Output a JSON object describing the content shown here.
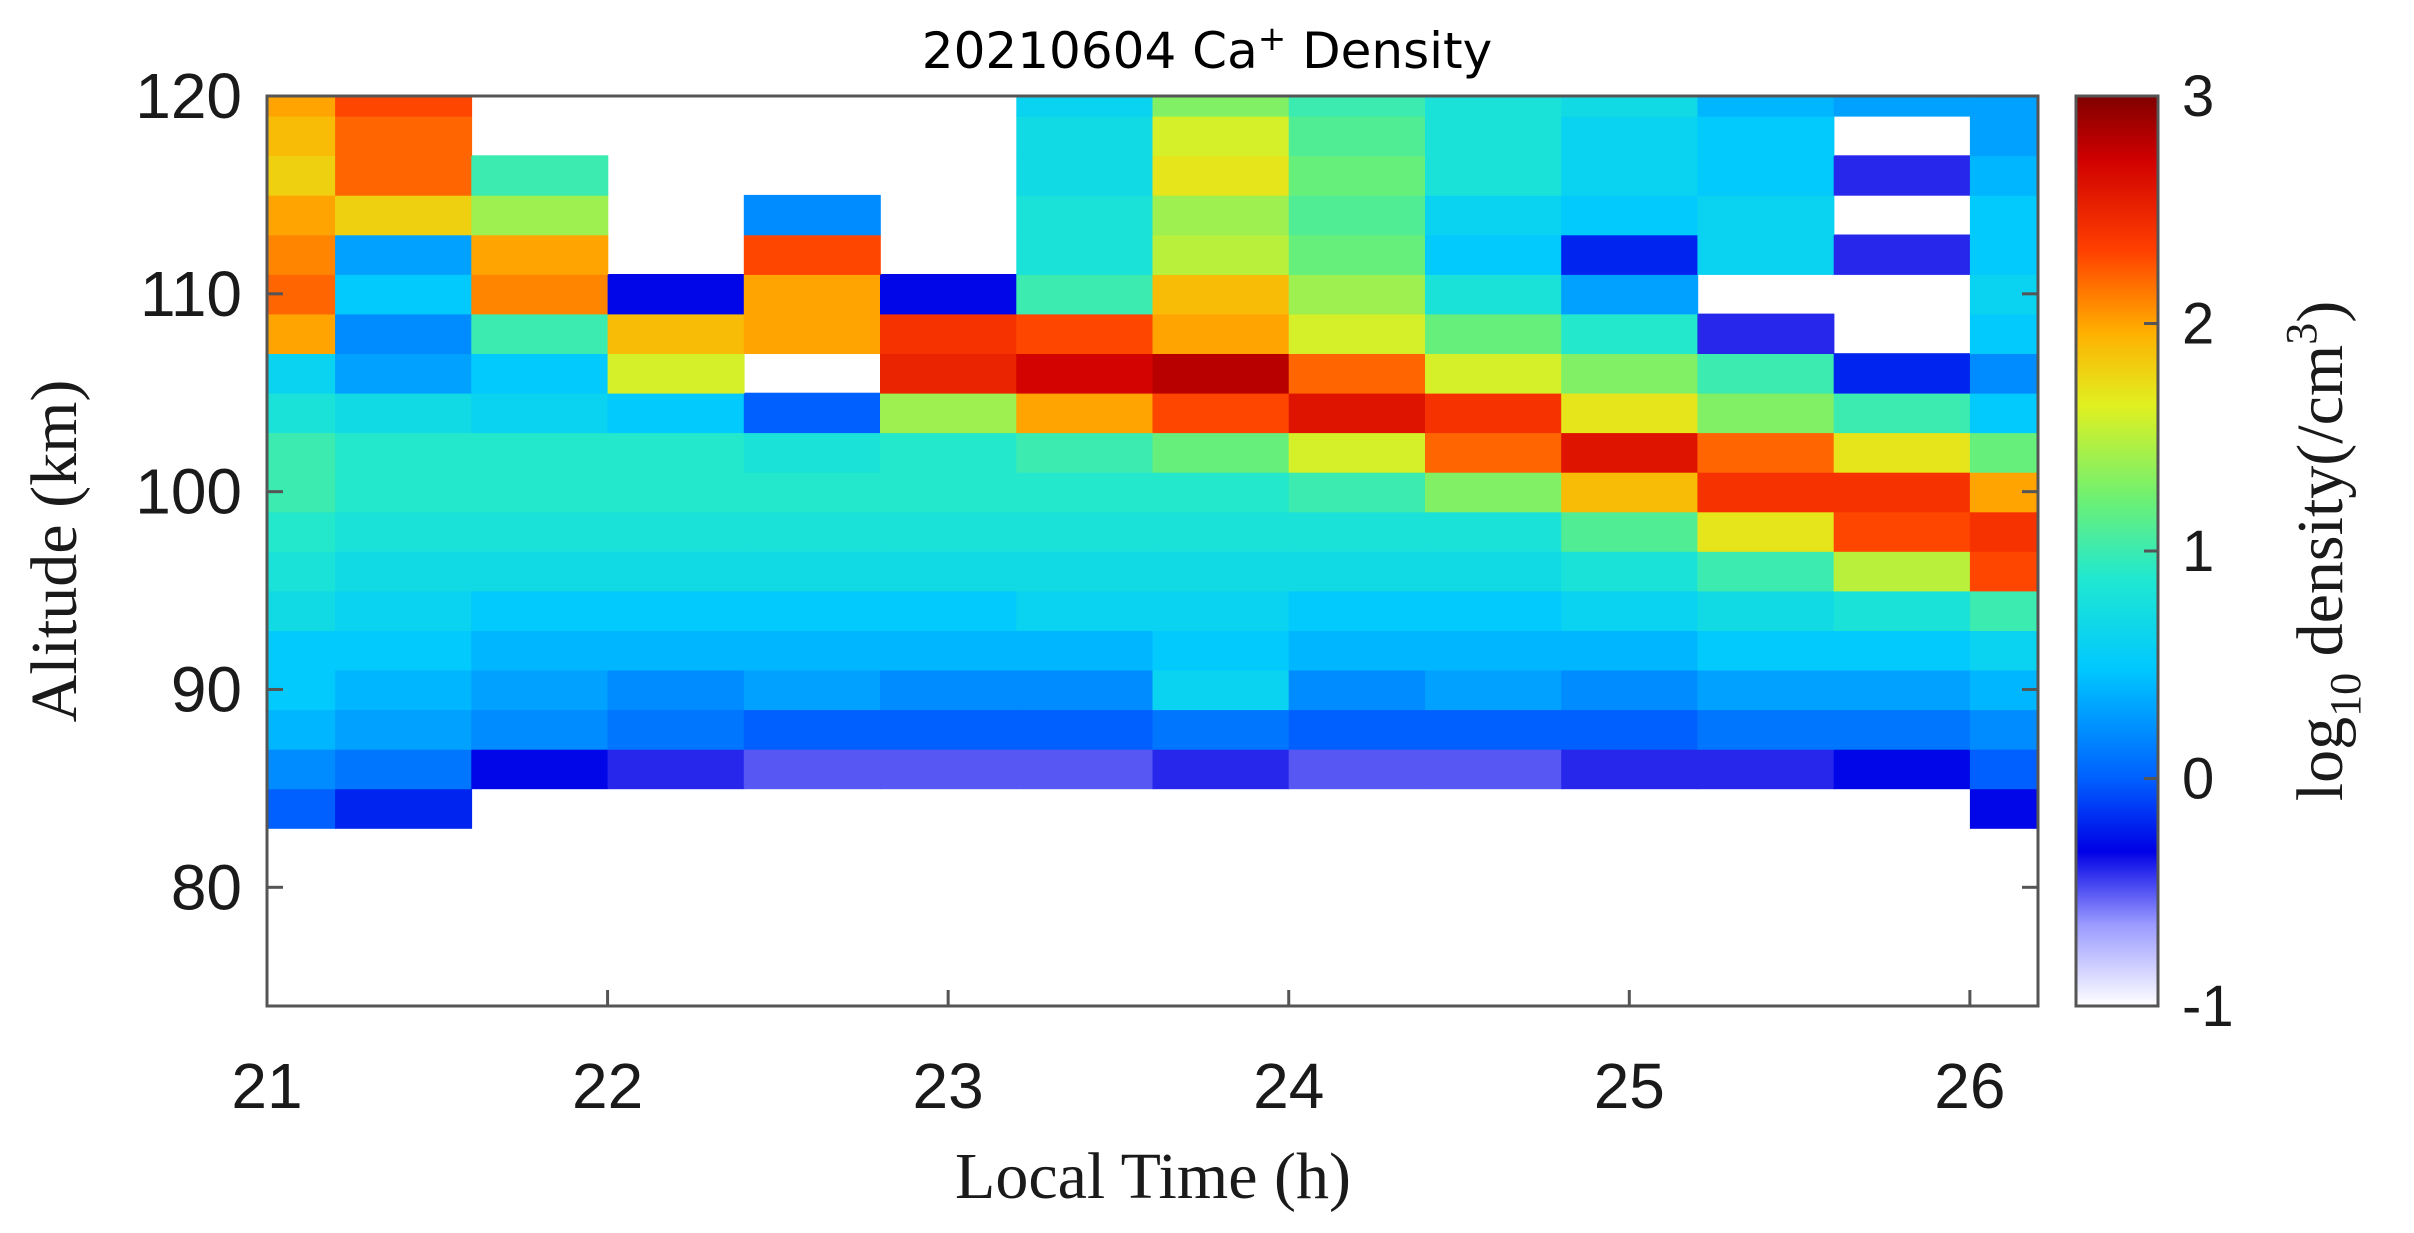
{
  "chart_data": {
    "type": "heatmap",
    "title": "20210604 Ca",
    "title_superscript": "+",
    "title_suffix": " Density",
    "xlabel": "Local Time (h)",
    "ylabel": "Alitude (km)",
    "colorbar_label_prefix": "log",
    "colorbar_label_subscript": "10",
    "colorbar_label_middle": " density(/cm",
    "colorbar_label_superscript": "3",
    "colorbar_label_suffix": ")",
    "xlim": [
      21,
      26.2
    ],
    "ylim": [
      74,
      120
    ],
    "x_ticks": [
      "21",
      "22",
      "23",
      "24",
      "25",
      "26"
    ],
    "y_ticks": [
      "80",
      "90",
      "100",
      "110",
      "120"
    ],
    "colorbar_ticks": [
      "-1",
      "0",
      "1",
      "2",
      "3"
    ],
    "color_range": [
      -1,
      3
    ],
    "colormap": "jet",
    "x": [
      21.0,
      21.4,
      21.8,
      22.2,
      22.6,
      23.0,
      23.4,
      23.8,
      24.2,
      24.6,
      25.0,
      25.4,
      25.8,
      26.2
    ],
    "y": [
      84,
      86,
      88,
      90,
      92,
      94,
      96,
      98,
      100,
      102,
      104,
      106,
      108,
      110,
      112,
      114,
      116,
      118,
      120
    ],
    "z": [
      [
        0.0,
        -0.2,
        null,
        null,
        null,
        null,
        null,
        null,
        null,
        null,
        null,
        null,
        null,
        -0.3
      ],
      [
        0.2,
        0.1,
        -0.3,
        -0.4,
        -0.5,
        -0.5,
        -0.5,
        -0.4,
        -0.5,
        -0.5,
        -0.4,
        -0.4,
        -0.3,
        0.0
      ],
      [
        0.4,
        0.3,
        0.2,
        0.1,
        0.0,
        0.0,
        0.0,
        0.1,
        0.0,
        0.0,
        0.0,
        0.1,
        0.1,
        0.2
      ],
      [
        0.5,
        0.4,
        0.3,
        0.2,
        0.3,
        0.2,
        0.2,
        0.6,
        0.2,
        0.3,
        0.2,
        0.3,
        0.3,
        0.4
      ],
      [
        0.5,
        0.5,
        0.4,
        0.4,
        0.4,
        0.4,
        0.4,
        0.5,
        0.4,
        0.4,
        0.4,
        0.5,
        0.5,
        0.6
      ],
      [
        0.7,
        0.6,
        0.5,
        0.5,
        0.5,
        0.5,
        0.6,
        0.6,
        0.5,
        0.5,
        0.6,
        0.7,
        0.8,
        1.0
      ],
      [
        0.8,
        0.7,
        0.7,
        0.7,
        0.7,
        0.7,
        0.7,
        0.7,
        0.7,
        0.7,
        0.8,
        1.0,
        1.5,
        2.3
      ],
      [
        0.9,
        0.8,
        0.8,
        0.8,
        0.8,
        0.8,
        0.8,
        0.8,
        0.8,
        0.8,
        1.1,
        1.7,
        2.3,
        2.4
      ],
      [
        1.0,
        0.9,
        0.9,
        0.9,
        0.9,
        0.9,
        0.9,
        0.9,
        1.0,
        1.3,
        1.9,
        2.4,
        2.4,
        2.0
      ],
      [
        1.0,
        0.9,
        0.9,
        0.9,
        0.8,
        0.9,
        1.0,
        1.2,
        1.6,
        2.2,
        2.6,
        2.2,
        1.7,
        1.2
      ],
      [
        0.8,
        0.7,
        0.6,
        0.5,
        0.0,
        1.4,
        2.0,
        2.3,
        2.6,
        2.4,
        1.7,
        1.3,
        1.0,
        0.5
      ],
      [
        0.6,
        0.3,
        0.5,
        1.6,
        null,
        2.5,
        2.7,
        2.8,
        2.2,
        1.6,
        1.3,
        1.0,
        -0.2,
        0.2
      ],
      [
        2.0,
        0.2,
        1.0,
        1.9,
        2.0,
        2.4,
        2.3,
        2.0,
        1.6,
        1.2,
        0.9,
        -0.4,
        null,
        0.5
      ],
      [
        2.2,
        0.5,
        2.1,
        -0.3,
        2.0,
        -0.3,
        1.0,
        1.9,
        1.4,
        0.8,
        0.3,
        null,
        null,
        0.6
      ],
      [
        2.1,
        0.3,
        2.0,
        null,
        2.3,
        null,
        0.8,
        1.5,
        1.2,
        0.5,
        -0.2,
        0.6,
        -0.4,
        0.5
      ],
      [
        2.0,
        1.8,
        1.4,
        null,
        0.2,
        null,
        0.8,
        1.4,
        1.1,
        0.6,
        0.5,
        0.6,
        null,
        0.5
      ],
      [
        1.8,
        2.2,
        1.0,
        null,
        null,
        null,
        0.7,
        1.7,
        1.2,
        0.8,
        0.6,
        0.5,
        -0.4,
        0.4
      ],
      [
        1.9,
        2.2,
        null,
        null,
        null,
        null,
        0.7,
        1.6,
        1.1,
        0.8,
        0.6,
        0.5,
        null,
        0.3
      ],
      [
        2.0,
        2.3,
        null,
        null,
        null,
        null,
        0.6,
        1.3,
        1.0,
        0.8,
        0.7,
        0.4,
        0.3,
        0.3
      ]
    ]
  }
}
